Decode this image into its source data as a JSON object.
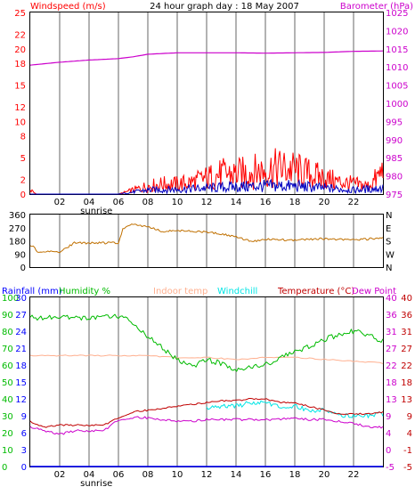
{
  "header": {
    "title": "24 hour graph day : 18 May 2007"
  },
  "chart_data": [
    {
      "type": "line",
      "title": "24 hour graph day : 18 May 2007",
      "x_range": [
        0,
        24
      ],
      "x_ticks": [
        "02",
        "04",
        "06",
        "08",
        "10",
        "12",
        "14",
        "16",
        "18",
        "20",
        "22"
      ],
      "x_tick_hours": [
        2,
        4,
        6,
        8,
        10,
        12,
        14,
        16,
        18,
        20,
        22
      ],
      "sunrise_label": "sunrise",
      "sunrise_hour": 4.5,
      "ylabel_left": "Windspeed (m/s)",
      "ylabel_right": "Barometer (hPa)",
      "ylim_left": [
        0,
        25
      ],
      "yticks_left": [
        0,
        2,
        5,
        8,
        10,
        12,
        15,
        18,
        20,
        22,
        25
      ],
      "ylim_right": [
        975,
        1025
      ],
      "yticks_right": [
        975,
        980,
        985,
        990,
        995,
        1000,
        1005,
        1010,
        1015,
        1020,
        1025
      ],
      "colors": {
        "gust": "#ff0000",
        "speed": "#0000c0",
        "barometer": "#cc00cc",
        "axis_left": "#ff0000",
        "axis_right": "#cc00cc"
      },
      "barometer_hpa": {
        "x": [
          0,
          2,
          4,
          6,
          7,
          8,
          10,
          12,
          14,
          16,
          18,
          20,
          22,
          24
        ],
        "y": [
          1010.5,
          1011.3,
          1011.9,
          1012.3,
          1012.8,
          1013.5,
          1013.9,
          1013.9,
          1013.9,
          1013.8,
          1013.9,
          1014.0,
          1014.3,
          1014.4
        ]
      },
      "gust_ms": {
        "x": [
          0,
          0.4,
          1,
          4,
          6,
          7,
          8,
          9,
          10,
          11,
          12,
          13,
          14,
          15,
          16,
          17,
          18,
          19,
          20,
          21,
          22,
          23,
          23.6,
          24
        ],
        "y": [
          1,
          0,
          0,
          0,
          0,
          1,
          2,
          2.5,
          2.5,
          3,
          4,
          5,
          5,
          5.5,
          6,
          6.5,
          6,
          5,
          4,
          3,
          2.5,
          2,
          4,
          6
        ]
      },
      "speed_ms": {
        "x": [
          0,
          1,
          6,
          7,
          8,
          10,
          12,
          14,
          16,
          18,
          20,
          22,
          24
        ],
        "y": [
          0,
          0,
          0,
          0.5,
          1,
          1.2,
          1.5,
          1.8,
          2,
          2,
          1.5,
          1,
          1.5
        ]
      }
    },
    {
      "type": "line",
      "x_range": [
        0,
        24
      ],
      "ylim": [
        0,
        360
      ],
      "yticks_left": [
        0,
        90,
        180,
        270,
        360
      ],
      "yticks_right": [
        "N",
        "W",
        "S",
        "E",
        "N"
      ],
      "colors": {
        "direction": "#c07000"
      },
      "direction_deg": {
        "x": [
          0,
          0.2,
          0.5,
          2,
          3,
          4,
          6,
          6.3,
          7,
          8,
          9,
          10,
          12,
          14,
          15,
          16,
          18,
          20,
          22,
          24
        ],
        "y": [
          150,
          140,
          105,
          105,
          165,
          165,
          165,
          260,
          295,
          275,
          245,
          250,
          240,
          210,
          175,
          190,
          185,
          195,
          185,
          200
        ]
      }
    },
    {
      "type": "line",
      "x_range": [
        0,
        24
      ],
      "ylabel_rainfall": "Rainfall (mm)",
      "ylabel_humidity": "Humidity %",
      "legend_indoor": "Indoor temp",
      "legend_windchill": "Windchill",
      "ylabel_temperature": "Temperature (°C)",
      "ylabel_dewpoint": "Dew Point",
      "ylim_humidity": [
        0,
        100
      ],
      "yticks_humidity": [
        0,
        10,
        20,
        30,
        40,
        50,
        60,
        70,
        80,
        90,
        100
      ],
      "ylim_rainfall": [
        0,
        30
      ],
      "yticks_rainfall": [
        0,
        3,
        6,
        9,
        12,
        15,
        18,
        21,
        24,
        27,
        30
      ],
      "ylim_temperature": [
        -5,
        40
      ],
      "yticks_temp_right_pink": [
        40,
        36,
        31,
        27,
        22,
        18,
        13,
        9,
        4,
        0,
        -5
      ],
      "yticks_temp_right_red": [
        40,
        36,
        31,
        27,
        22,
        18,
        13,
        9,
        4,
        -1,
        -5
      ],
      "colors": {
        "humidity": "#00bb00",
        "indoor": "#ffb090",
        "windchill": "#00e5e5",
        "temperature": "#c00000",
        "dewpoint": "#cc00cc",
        "rainfall": "#0000ff",
        "axis_rain": "#0000ff",
        "axis_humidity": "#00bb00",
        "axis_temp": "#c00000",
        "axis_dew": "#cc00cc"
      },
      "rainfall_mm": {
        "x": [
          0,
          24
        ],
        "y": [
          0,
          0
        ]
      },
      "humidity_pct": {
        "x": [
          0,
          2,
          4,
          5,
          6,
          7,
          8,
          9,
          10,
          11,
          12,
          13,
          14,
          15,
          16,
          17,
          18,
          19,
          20,
          21,
          22,
          23,
          23.6,
          24
        ],
        "y": [
          88,
          88,
          88,
          89,
          89,
          85,
          77,
          70,
          63,
          59,
          63,
          61,
          57,
          59,
          60,
          64,
          68,
          71,
          75,
          78,
          80,
          78,
          75,
          74
        ]
      },
      "indoor_temp_c": {
        "x": [
          0,
          4,
          6,
          8,
          10,
          12,
          14,
          16,
          18,
          20,
          22,
          24
        ],
        "y": [
          24.5,
          24.5,
          24.5,
          24.5,
          24,
          24,
          23.5,
          24,
          24,
          23.5,
          23,
          22.5
        ]
      },
      "temperature_c": {
        "x": [
          0,
          0.5,
          1,
          2,
          4,
          5,
          6,
          7,
          8,
          9,
          10,
          11,
          12,
          13,
          14,
          15,
          16,
          17,
          18,
          19,
          20,
          21,
          22,
          23,
          24
        ],
        "y": [
          7,
          6,
          5.5,
          6,
          6,
          6,
          8,
          9.5,
          10,
          10.5,
          11,
          11.5,
          12,
          12.5,
          12.5,
          13,
          13,
          12,
          12,
          11,
          10,
          9,
          9,
          9,
          9.5
        ]
      },
      "windchill_c": {
        "x": [
          12,
          13,
          14,
          15,
          16,
          17,
          18,
          19,
          20,
          21,
          22,
          23,
          24
        ],
        "y": [
          10.5,
          11,
          11,
          12,
          12,
          11,
          11,
          10,
          10,
          8.5,
          8.5,
          8.5,
          9
        ]
      },
      "dewpoint_c": {
        "x": [
          0,
          1,
          2,
          3,
          4,
          5,
          6,
          7,
          8,
          9,
          10,
          11,
          12,
          13,
          14,
          15,
          16,
          17,
          18,
          19,
          20,
          21,
          22,
          23,
          24
        ],
        "y": [
          5.5,
          4.5,
          3.5,
          4.5,
          4.5,
          4.5,
          7.5,
          8,
          8,
          7.5,
          7,
          7,
          7.5,
          7.5,
          7.5,
          7.5,
          7.5,
          7.5,
          8,
          7.5,
          7.5,
          7,
          6.5,
          5.5,
          5.5
        ]
      }
    }
  ]
}
